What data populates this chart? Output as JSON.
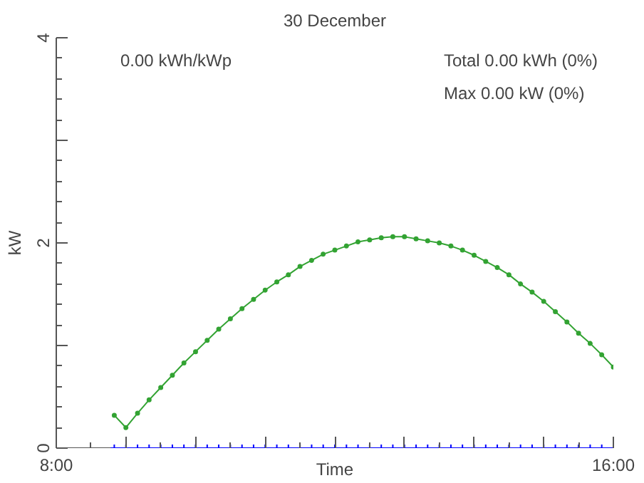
{
  "chart_data": {
    "type": "line",
    "title": "30 December",
    "xlabel": "Time",
    "ylabel": "kW",
    "annotations": [
      "0.00 kWh/kWp",
      "Total 0.00 kWh (0%)",
      "Max 0.00 kW (0%)"
    ],
    "x": [
      8.833,
      9.0,
      9.167,
      9.333,
      9.5,
      9.667,
      9.833,
      10.0,
      10.167,
      10.333,
      10.5,
      10.667,
      10.833,
      11.0,
      11.167,
      11.333,
      11.5,
      11.667,
      11.833,
      12.0,
      12.167,
      12.333,
      12.5,
      12.667,
      12.833,
      13.0,
      13.167,
      13.333,
      13.5,
      13.667,
      13.833,
      14.0,
      14.167,
      14.333,
      14.5,
      14.667,
      14.833,
      15.0,
      15.167,
      15.333,
      15.5,
      15.667,
      15.833,
      16.0
    ],
    "series": [
      {
        "color": "#33a333",
        "marker": "circle",
        "values": [
          0.32,
          0.2,
          0.34,
          0.47,
          0.59,
          0.71,
          0.83,
          0.94,
          1.05,
          1.16,
          1.26,
          1.36,
          1.45,
          1.54,
          1.62,
          1.69,
          1.77,
          1.83,
          1.89,
          1.93,
          1.97,
          2.01,
          2.03,
          2.05,
          2.06,
          2.06,
          2.04,
          2.02,
          2.0,
          1.97,
          1.93,
          1.88,
          1.82,
          1.76,
          1.69,
          1.6,
          1.52,
          1.43,
          1.33,
          1.23,
          1.12,
          1.02,
          0.91,
          0.79
        ]
      },
      {
        "color": "#0000ff",
        "marker": "cross",
        "values": [
          0,
          0,
          0,
          0,
          0,
          0,
          0,
          0,
          0,
          0,
          0,
          0,
          0,
          0,
          0,
          0,
          0,
          0,
          0,
          0,
          0,
          0,
          0,
          0,
          0,
          0,
          0,
          0,
          0,
          0,
          0,
          0,
          0,
          0,
          0,
          0,
          0,
          0,
          0,
          0,
          0,
          0,
          0,
          0
        ]
      }
    ],
    "xlim": [
      8,
      16
    ],
    "ylim": [
      0,
      4
    ],
    "xticks": [
      {
        "value": 8,
        "label": "8:00"
      },
      {
        "value": 9,
        "label": null
      },
      {
        "value": 10,
        "label": null
      },
      {
        "value": 11,
        "label": null
      },
      {
        "value": 12,
        "label": null
      },
      {
        "value": 13,
        "label": null
      },
      {
        "value": 14,
        "label": null
      },
      {
        "value": 15,
        "label": null
      },
      {
        "value": 16,
        "label": "16:00"
      }
    ],
    "yticks": [
      0,
      {
        "value": 1,
        "label": null
      },
      2,
      {
        "value": 3,
        "label": null
      },
      4
    ],
    "grid": false,
    "line_style": "solid"
  }
}
